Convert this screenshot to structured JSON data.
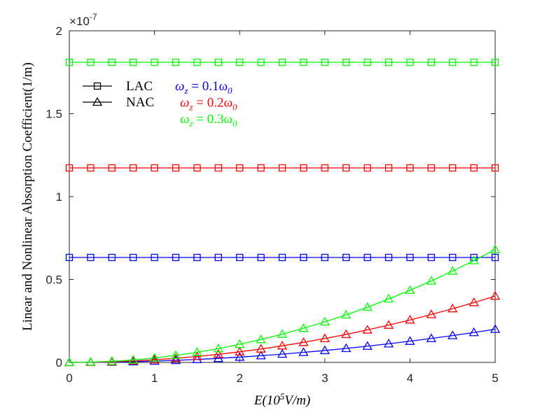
{
  "chart_data": {
    "type": "line",
    "y_exponent": [
      "×10",
      "-7"
    ],
    "xlabel": [
      "E(10",
      "5",
      "V/m)"
    ],
    "ylabel": "Linear and Nonlinear Absorption Coefficient(1/m)",
    "x": [
      0,
      0.25,
      0.5,
      0.75,
      1,
      1.25,
      1.5,
      1.75,
      2,
      2.25,
      2.5,
      2.75,
      3,
      3.25,
      3.5,
      3.75,
      4,
      4.25,
      4.5,
      4.75,
      5
    ],
    "xlim": [
      0,
      5
    ],
    "xticks": [
      0,
      1,
      2,
      3,
      4,
      5
    ],
    "ylim": [
      0,
      2
    ],
    "yticks": [
      0,
      0.5,
      1,
      1.5,
      2
    ],
    "series": [
      {
        "marker": "square",
        "color": "#0000ff",
        "values": [
          0.633,
          0.633,
          0.633,
          0.633,
          0.633,
          0.633,
          0.633,
          0.633,
          0.633,
          0.633,
          0.633,
          0.633,
          0.633,
          0.633,
          0.633,
          0.633,
          0.633,
          0.633,
          0.633,
          0.633,
          0.633
        ]
      },
      {
        "marker": "square",
        "color": "#ff0000",
        "values": [
          1.173,
          1.173,
          1.173,
          1.173,
          1.173,
          1.173,
          1.173,
          1.173,
          1.173,
          1.173,
          1.173,
          1.173,
          1.173,
          1.173,
          1.173,
          1.173,
          1.173,
          1.173,
          1.173,
          1.173,
          1.173
        ]
      },
      {
        "marker": "square",
        "color": "#00ff00",
        "values": [
          1.81,
          1.81,
          1.81,
          1.81,
          1.81,
          1.81,
          1.81,
          1.81,
          1.81,
          1.81,
          1.81,
          1.81,
          1.81,
          1.81,
          1.81,
          1.81,
          1.81,
          1.81,
          1.81,
          1.81,
          1.81
        ]
      },
      {
        "marker": "triangle",
        "color": "#0000ff",
        "values": [
          0,
          0.0005,
          0.002,
          0.0045,
          0.008,
          0.0125,
          0.018,
          0.0245,
          0.032,
          0.0405,
          0.05,
          0.0605,
          0.072,
          0.0845,
          0.098,
          0.1125,
          0.128,
          0.1445,
          0.162,
          0.1805,
          0.2
        ]
      },
      {
        "marker": "triangle",
        "color": "#ff0000",
        "values": [
          0,
          0.001,
          0.004,
          0.009,
          0.016,
          0.025,
          0.036,
          0.049,
          0.064,
          0.081,
          0.1,
          0.121,
          0.144,
          0.169,
          0.196,
          0.225,
          0.256,
          0.289,
          0.324,
          0.361,
          0.4
        ]
      },
      {
        "marker": "triangle",
        "color": "#00ff00",
        "values": [
          0,
          0.002,
          0.007,
          0.015,
          0.027,
          0.043,
          0.061,
          0.083,
          0.109,
          0.138,
          0.17,
          0.206,
          0.245,
          0.287,
          0.333,
          0.383,
          0.435,
          0.491,
          0.551,
          0.614,
          0.68
        ]
      }
    ],
    "legend": {
      "entries": [
        {
          "label": "LAC",
          "marker": "square"
        },
        {
          "label": "NAC",
          "marker": "triangle"
        }
      ],
      "color_labels": [
        {
          "color": "#0000ff",
          "parts": [
            "ω",
            "z",
            " = 0.1ω",
            "0"
          ]
        },
        {
          "color": "#ff0000",
          "parts": [
            "ω",
            "z",
            " = 0.2ω",
            "0"
          ]
        },
        {
          "color": "#00ff00",
          "parts": [
            "ω",
            "z",
            " = 0.3ω",
            "0"
          ]
        }
      ]
    }
  }
}
